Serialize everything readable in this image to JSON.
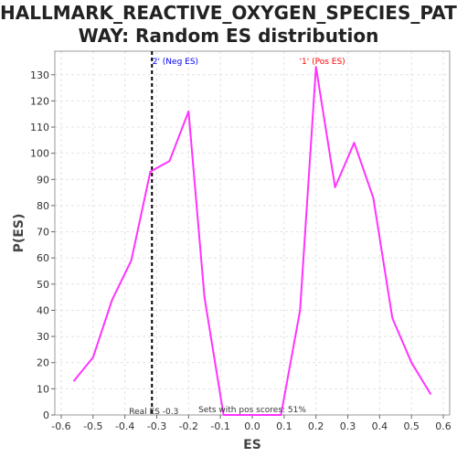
{
  "title_line1": "HALLMARK_REACTIVE_OXYGEN_SPECIES_PATH",
  "title_line2": "WAY: Random ES distribution",
  "chart_data": {
    "type": "line",
    "xlabel": "ES",
    "ylabel": "P(ES)",
    "xlim": [
      -0.62,
      0.62
    ],
    "ylim": [
      0,
      139
    ],
    "xticks": [
      -0.6,
      -0.5,
      -0.4,
      -0.3,
      -0.2,
      -0.1,
      0.0,
      0.1,
      0.2,
      0.3,
      0.4,
      0.5,
      0.6
    ],
    "xtick_labels": [
      "-0.6",
      "-0.5",
      "-0.4",
      "-0.3",
      "-0.2",
      "-0.1",
      "0.0",
      "0.1",
      "0.2",
      "0.3",
      "0.4",
      "0.5",
      "0.6"
    ],
    "yticks": [
      0,
      10,
      20,
      30,
      40,
      50,
      60,
      70,
      80,
      90,
      100,
      110,
      120,
      130
    ],
    "grid": true,
    "series": [
      {
        "color": "#ff33ff",
        "x": [
          -0.56,
          -0.5,
          -0.44,
          -0.38,
          -0.32,
          -0.26,
          -0.2,
          -0.15,
          -0.09,
          0.09,
          0.15,
          0.2,
          0.26,
          0.32,
          0.38,
          0.44,
          0.5,
          0.56
        ],
        "y": [
          13,
          22,
          44,
          59,
          93,
          97,
          116,
          45,
          0,
          0,
          40,
          133,
          87,
          104,
          83,
          37,
          20,
          8
        ]
      }
    ],
    "vline": {
      "x": -0.315,
      "style": "dashed",
      "color": "#000000"
    },
    "annotations": {
      "neg": {
        "text": "'2' (Neg ES)",
        "color": "#0000ff"
      },
      "pos": {
        "text": "'1' (Pos ES)",
        "color": "#ff0000"
      },
      "real_es": {
        "text": "Real ES -0.3"
      },
      "pos_scores": {
        "text": "Sets with pos scores: 51%"
      }
    }
  }
}
